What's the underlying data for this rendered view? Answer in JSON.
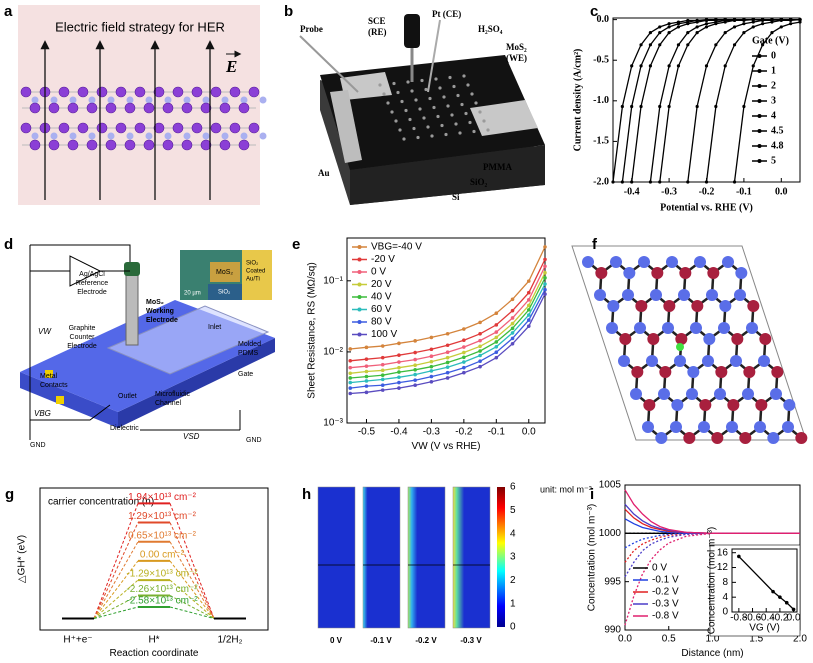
{
  "panels": {
    "a": {
      "label": "a",
      "title": "Electric field strategy for HER",
      "field": "E"
    },
    "b": {
      "label": "b",
      "labels": [
        "Probe",
        "SCE",
        "(RE)",
        "Pt (CE)",
        "H₂SO₄",
        "MoS₂",
        "(WE)",
        "Au",
        "PMMA",
        "SiO₂",
        "Si"
      ]
    },
    "d": {
      "label": "d",
      "labels": [
        "Ag/AgCl",
        "Reference",
        "Electrode",
        "MoS₂",
        "Working",
        "Electrode",
        "Graphite",
        "Counter",
        "Electrode",
        "Inlet",
        "Molded",
        "PDMS",
        "Metal",
        "Contacts",
        "Outlet",
        "Microfluidic",
        "Channel",
        "Gate",
        "VW",
        "VBG",
        "VSD",
        "GND",
        "GND",
        "Dielectric",
        "MoS₂",
        "SiO₂",
        "SiO₂",
        "Coated",
        "Au/Ti",
        "20 µm"
      ]
    },
    "f": {
      "label": "f"
    },
    "h": {
      "label": "h",
      "unit": "unit: mol m⁻³",
      "colorbar_ticks": [
        0,
        1,
        2,
        3,
        4,
        5,
        6
      ],
      "panel_labels": [
        "0 V",
        "-0.1 V",
        "-0.2 V",
        "-0.3 V"
      ]
    }
  },
  "chart_data": [
    {
      "panel": "c",
      "type": "line",
      "markers": true,
      "xlabel": "Potential vs. RHE (V)",
      "ylabel": "Current density (A/cm²)",
      "legend_title": "Gate (V)",
      "xlim": [
        -0.45,
        0.05
      ],
      "xticks": [
        -0.4,
        -0.3,
        -0.2,
        -0.1,
        {
          "value": 0,
          "label": "0.0"
        }
      ],
      "ylim": [
        -2,
        0.02
      ],
      "yticks": [
        {
          "value": -2,
          "label": "-2.0"
        },
        -1.5,
        {
          "value": -1,
          "label": "-1.0"
        },
        -0.5,
        {
          "value": 0,
          "label": "0.0"
        }
      ],
      "x": [
        -0.45,
        -0.425,
        -0.4,
        -0.375,
        -0.35,
        -0.325,
        -0.3,
        -0.275,
        -0.25,
        -0.225,
        -0.2,
        -0.175,
        -0.15,
        -0.125,
        -0.1,
        -0.075,
        -0.05,
        -0.025,
        0,
        0.025,
        0.05
      ],
      "series": [
        {
          "name": "0",
          "color": "#000000",
          "values": [
            -2,
            -1.07,
            -0.57,
            -0.31,
            -0.16,
            -0.09,
            -0.05,
            -0.03,
            -0.01,
            -0.01,
            0,
            0,
            0,
            0,
            0,
            0,
            0,
            0,
            0,
            0,
            0
          ]
        },
        {
          "name": "1",
          "color": "#000000",
          "values": [
            null,
            -2,
            -1.07,
            -0.57,
            -0.31,
            -0.16,
            -0.09,
            -0.05,
            -0.03,
            -0.01,
            -0.01,
            0,
            0,
            0,
            0,
            0,
            0,
            0,
            0,
            0,
            0
          ]
        },
        {
          "name": "2",
          "color": "#000000",
          "values": [
            null,
            null,
            -2,
            -1.07,
            -0.57,
            -0.31,
            -0.16,
            -0.09,
            -0.05,
            -0.03,
            -0.01,
            -0.01,
            0,
            0,
            0,
            0,
            0,
            0,
            0,
            0,
            0
          ]
        },
        {
          "name": "3",
          "color": "#000000",
          "values": [
            null,
            null,
            null,
            null,
            -2,
            -1.07,
            -0.57,
            -0.31,
            -0.16,
            -0.09,
            -0.05,
            -0.03,
            -0.01,
            -0.01,
            0,
            0,
            0,
            0,
            0,
            0,
            0
          ]
        },
        {
          "name": "4",
          "color": "#000000",
          "values": [
            null,
            null,
            null,
            null,
            null,
            -2,
            -1.07,
            -0.57,
            -0.31,
            -0.16,
            -0.09,
            -0.05,
            -0.03,
            -0.01,
            -0.01,
            0,
            0,
            0,
            0,
            0,
            0
          ]
        },
        {
          "name": "4.5",
          "color": "#000000",
          "values": [
            null,
            null,
            null,
            null,
            null,
            null,
            null,
            null,
            -2,
            -1.07,
            -0.57,
            -0.31,
            -0.16,
            -0.09,
            -0.05,
            -0.03,
            -0.01,
            -0.01,
            0,
            0,
            0
          ]
        },
        {
          "name": "4.8",
          "color": "#000000",
          "values": [
            null,
            null,
            null,
            null,
            null,
            null,
            null,
            null,
            null,
            null,
            -2,
            -1.07,
            -0.57,
            -0.31,
            -0.16,
            -0.09,
            -0.05,
            -0.03,
            -0.01,
            -0.01,
            0
          ]
        },
        {
          "name": "5",
          "color": "#000000",
          "values": [
            null,
            null,
            null,
            null,
            null,
            null,
            null,
            null,
            null,
            null,
            null,
            null,
            null,
            -2,
            -1.07,
            -0.57,
            -0.31,
            -0.16,
            -0.09,
            -0.05,
            -0.03
          ]
        }
      ]
    },
    {
      "panel": "e",
      "type": "line",
      "markers": true,
      "log_y": true,
      "xlabel": "VW (V vs RHE)",
      "ylabel": "Sheet Resistance, RS (MΩ/sq)",
      "xlim": [
        -0.56,
        0.05
      ],
      "xticks": [
        -0.5,
        -0.4,
        -0.3,
        -0.2,
        -0.1,
        {
          "value": 0,
          "label": "0.0"
        }
      ],
      "ylim": [
        0.001,
        0.4
      ],
      "yticks": [
        {
          "value": 0.001,
          "label": "10⁻³"
        },
        {
          "value": 0.01,
          "label": "10⁻²"
        },
        {
          "value": 0.1,
          "label": "10⁻¹"
        }
      ],
      "x": [
        -0.55,
        -0.5,
        -0.45,
        -0.4,
        -0.35,
        -0.3,
        -0.25,
        -0.2,
        -0.15,
        -0.1,
        -0.05,
        0,
        0.05
      ],
      "series": [
        {
          "name": "VBG=-40 V",
          "color": "#d4843c",
          "values": [
            0.011,
            0.0116,
            0.0121,
            0.0132,
            0.0143,
            0.016,
            0.018,
            0.021,
            0.026,
            0.035,
            0.055,
            0.099,
            0.3
          ]
        },
        {
          "name": "-20 V",
          "color": "#e03a3a",
          "values": [
            0.0075,
            0.0079,
            0.0083,
            0.009,
            0.0098,
            0.0109,
            0.0124,
            0.0146,
            0.018,
            0.024,
            0.038,
            0.068,
            0.2
          ]
        },
        {
          "name": "0 V",
          "color": "#f0607a",
          "values": [
            0.006,
            0.0063,
            0.0066,
            0.0072,
            0.0078,
            0.0087,
            0.0099,
            0.0117,
            0.0144,
            0.019,
            0.03,
            0.054,
            0.16
          ]
        },
        {
          "name": "20 V",
          "color": "#c6cc3a",
          "values": [
            0.005,
            0.0053,
            0.0055,
            0.006,
            0.0065,
            0.0073,
            0.0083,
            0.0098,
            0.012,
            0.016,
            0.025,
            0.045,
            0.13
          ]
        },
        {
          "name": "40 V",
          "color": "#3cbc3c",
          "values": [
            0.0043,
            0.0045,
            0.0047,
            0.0052,
            0.0056,
            0.0062,
            0.0071,
            0.0084,
            0.0103,
            0.0138,
            0.0215,
            0.039,
            0.11
          ]
        },
        {
          "name": "60 V",
          "color": "#2cbcbc",
          "values": [
            0.0037,
            0.0039,
            0.0041,
            0.0044,
            0.0048,
            0.0054,
            0.0061,
            0.0072,
            0.0089,
            0.0118,
            0.0185,
            0.033,
            0.09
          ]
        },
        {
          "name": "80 V",
          "color": "#3c5ce0",
          "values": [
            0.0031,
            0.0033,
            0.0034,
            0.0037,
            0.004,
            0.0045,
            0.0051,
            0.006,
            0.0074,
            0.0099,
            0.0155,
            0.028,
            0.075
          ]
        },
        {
          "name": "100 V",
          "color": "#5a4cc0",
          "values": [
            0.0026,
            0.0027,
            0.0029,
            0.0031,
            0.0034,
            0.0038,
            0.0043,
            0.0051,
            0.0062,
            0.0083,
            0.013,
            0.023,
            0.065
          ]
        }
      ]
    },
    {
      "panel": "g",
      "type": "energy_diagram",
      "ylabel": "△GH* (eV)",
      "xlabel": "Reaction coordinate",
      "annotation": "carrier concentration (n)",
      "categories": [
        "H⁺+e⁻",
        "H*",
        "1/2H₂"
      ],
      "ylim": [
        -0.03,
        0.34
      ],
      "series": [
        {
          "name": "1.94×10¹³ cm⁻²",
          "color": "#e02020",
          "values": [
            0,
            0.3,
            0
          ]
        },
        {
          "name": "1.29×10¹³ cm⁻²",
          "color": "#e04a2a",
          "values": [
            0,
            0.25,
            0
          ]
        },
        {
          "name": "0.65×10¹³ cm⁻²",
          "color": "#e07a30",
          "values": [
            0,
            0.2,
            0
          ]
        },
        {
          "name": "0.00 cm⁻²",
          "color": "#d89a20",
          "values": [
            0,
            0.15,
            0
          ]
        },
        {
          "name": "-1.29×10¹³ cm⁻²",
          "color": "#b8b020",
          "values": [
            0,
            0.1,
            0
          ]
        },
        {
          "name": "-2.26×10¹³ cm⁻²",
          "color": "#78b030",
          "values": [
            0,
            0.06,
            0
          ]
        },
        {
          "name": "-2.58×10¹³ cm⁻²",
          "color": "#30a030",
          "values": [
            0,
            0.03,
            0
          ]
        }
      ]
    },
    {
      "panel": "i",
      "type": "line",
      "xlabel": "Distance (nm)",
      "ylabel": "Concentration (mol m⁻³)",
      "xlim": [
        0,
        2
      ],
      "xticks": [
        {
          "value": 0,
          "label": "0.0"
        },
        0.5,
        {
          "value": 1,
          "label": "1.0"
        },
        1.5,
        {
          "value": 2,
          "label": "2.0"
        }
      ],
      "ylim": [
        990,
        1005
      ],
      "yticks": [
        990,
        995,
        1000,
        1005
      ],
      "x": [
        0,
        0.1,
        0.2,
        0.3,
        0.4,
        0.5,
        0.7,
        1,
        1.5,
        2
      ],
      "series": [
        {
          "name": "0 V",
          "color": "#000000",
          "values": [
            1000,
            1000,
            1000,
            1000,
            1000,
            1000,
            1000,
            1000,
            1000,
            1000
          ],
          "lower_values": [
            1000,
            1000,
            1000,
            1000,
            1000,
            1000,
            1000,
            1000,
            1000,
            1000
          ]
        },
        {
          "name": "-0.1 V",
          "color": "#2040e0",
          "values": [
            1001.5,
            1001,
            1000.6,
            1000.4,
            1000.2,
            1000.1,
            1000,
            1000,
            1000,
            1000
          ],
          "lower_values": [
            998.5,
            999,
            999.4,
            999.6,
            999.8,
            999.9,
            1000,
            1000,
            1000,
            1000
          ]
        },
        {
          "name": "-0.2 V",
          "color": "#e02020",
          "values": [
            1002.5,
            1001.6,
            1001,
            1000.6,
            1000.4,
            1000.2,
            1000.1,
            1000,
            1000,
            1000
          ],
          "lower_values": [
            997,
            998.2,
            998.9,
            999.3,
            999.6,
            999.8,
            999.9,
            1000,
            1000,
            1000
          ]
        },
        {
          "name": "-0.3 V",
          "color": "#4a3cc8",
          "values": [
            1003,
            1002,
            1001.3,
            1000.8,
            1000.5,
            1000.3,
            1000.1,
            1000,
            1000,
            1000
          ],
          "lower_values": [
            995.5,
            997,
            998.2,
            998.9,
            999.3,
            999.6,
            999.9,
            1000,
            1000,
            1000
          ]
        },
        {
          "name": "-0.8 V",
          "color": "#e0206e",
          "values": [
            1004.5,
            1003,
            1002,
            1001.2,
            1000.7,
            1000.4,
            1000.1,
            1000,
            1000,
            1000
          ],
          "lower_values": [
            990.5,
            993.5,
            995.8,
            997.3,
            998.3,
            999,
            999.7,
            1000,
            1000,
            1000
          ]
        }
      ]
    },
    {
      "type": "line",
      "markers": true,
      "xlabel": "VG (V)",
      "ylabel": "Concentration (mol m⁻³)",
      "xlim": [
        -0.9,
        0.05
      ],
      "xticks": [
        -0.8,
        -0.6,
        -0.4,
        -0.2,
        {
          "value": 0,
          "label": "0.0"
        }
      ],
      "ylim": [
        0,
        17
      ],
      "yticks": [
        0,
        4,
        8,
        12,
        16
      ],
      "x": [
        -0.8,
        -0.3,
        -0.2,
        -0.1,
        0
      ],
      "series": [
        {
          "color": "#000000",
          "values": [
            15,
            5.5,
            4,
            2.5,
            0.7
          ]
        }
      ]
    }
  ]
}
